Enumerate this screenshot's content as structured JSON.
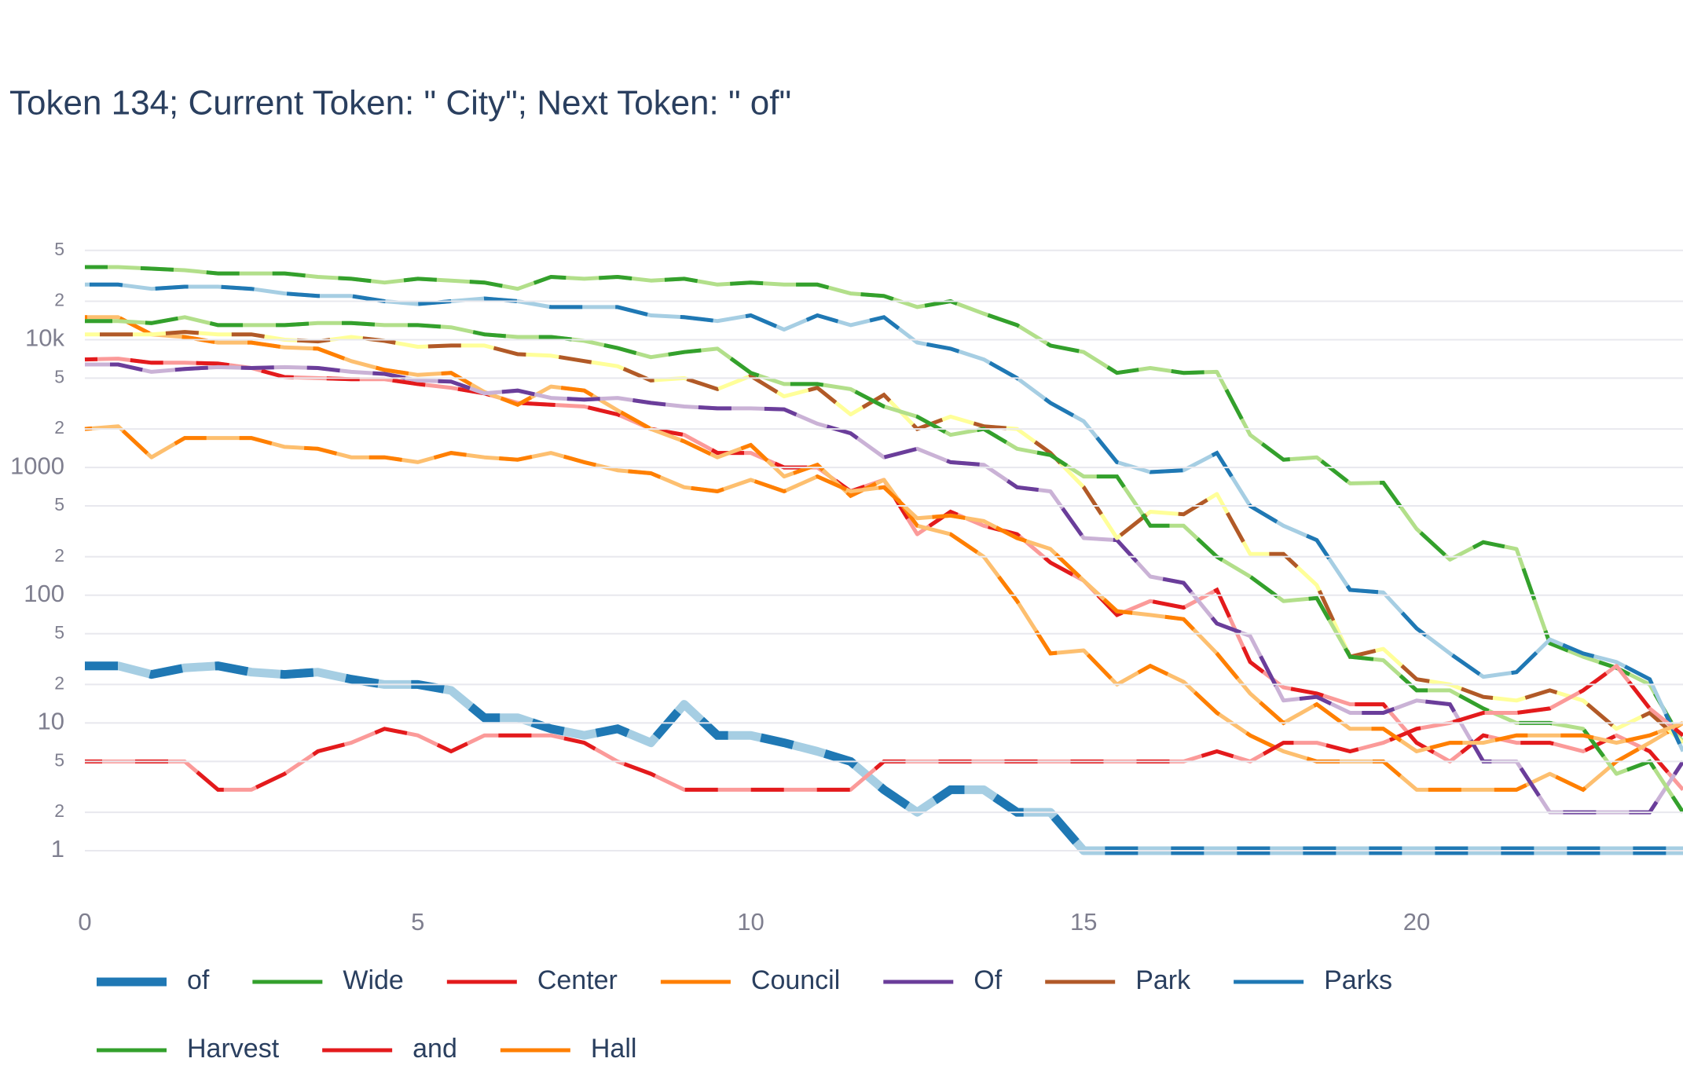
{
  "chart_data": {
    "type": "line",
    "title": "Token 134; Current Token: \" City\"; Next Token: \" of\"",
    "log_y": true,
    "grid": true,
    "x": [
      0,
      0.5,
      1,
      1.5,
      2,
      2.5,
      3,
      3.5,
      4,
      4.5,
      5,
      5.5,
      6,
      6.5,
      7,
      7.5,
      8,
      8.5,
      9,
      9.5,
      10,
      10.5,
      11,
      11.5,
      12,
      12.5,
      13,
      13.5,
      14,
      14.5,
      15,
      15.5,
      16,
      16.5,
      17,
      17.5,
      18,
      18.5,
      19,
      19.5,
      20,
      20.5,
      21,
      21.5,
      22,
      22.5,
      23,
      23.5,
      24
    ],
    "xlim": [
      0,
      24
    ],
    "xticks": [
      0,
      5,
      10,
      15,
      20
    ],
    "ylim": [
      0.5,
      70000
    ],
    "yticks": [
      1,
      {
        "value": 2,
        "label": "2"
      },
      {
        "value": 5,
        "label": "5"
      },
      10,
      {
        "value": 20,
        "label": "2"
      },
      {
        "value": 50,
        "label": "5"
      },
      100,
      {
        "value": 200,
        "label": "2"
      },
      {
        "value": 500,
        "label": "5"
      },
      1000,
      {
        "value": 2000,
        "label": "2"
      },
      {
        "value": 5000,
        "label": "5"
      },
      {
        "value": 10000,
        "label": "10k"
      },
      {
        "value": 20000,
        "label": "2"
      },
      {
        "value": 50000,
        "label": "5"
      }
    ],
    "series": [
      {
        "name": "of",
        "colors": [
          "#1f78b4",
          "#a6cee3"
        ],
        "values": [
          28,
          28,
          24,
          27,
          28,
          25,
          24,
          25,
          22,
          20,
          20,
          18,
          11,
          11,
          9,
          8,
          9,
          7,
          14,
          8,
          8,
          7,
          6,
          5,
          3,
          2,
          3,
          3,
          2,
          2,
          1,
          1,
          1,
          1,
          1,
          1,
          1,
          1,
          1,
          1,
          1,
          1,
          1,
          1,
          1,
          1,
          1,
          1,
          1
        ]
      },
      {
        "name": "Wide",
        "colors": [
          "#33a02c",
          "#b2df8a"
        ],
        "values": [
          37000,
          37000,
          36000,
          35000,
          33000,
          33000,
          33000,
          31000,
          30000,
          28000,
          30000,
          29000,
          28000,
          25000,
          31000,
          30000,
          31000,
          29000,
          30000,
          27000,
          28000,
          27000,
          27000,
          23000,
          22000,
          18000,
          20000,
          16000,
          13000,
          9000,
          8000,
          5500,
          6000,
          5500,
          5600,
          1800,
          1150,
          1200,
          750,
          760,
          330,
          190,
          260,
          230,
          42,
          33,
          27,
          20,
          7
        ]
      },
      {
        "name": "Center",
        "colors": [
          "#e31a1c",
          "#fb9a99"
        ],
        "values": [
          7000,
          7100,
          6600,
          6600,
          6500,
          6000,
          5100,
          5000,
          4900,
          4900,
          4500,
          4200,
          3800,
          3200,
          3100,
          3000,
          2600,
          2000,
          1800,
          1300,
          1300,
          1000,
          1000,
          650,
          800,
          300,
          450,
          350,
          300,
          180,
          130,
          70,
          90,
          80,
          110,
          30,
          19,
          17,
          14,
          14,
          7,
          5,
          8,
          7,
          7,
          6,
          8,
          6,
          3
        ]
      },
      {
        "name": "Council",
        "colors": [
          "#ff7f00",
          "#fdbf6f"
        ],
        "values": [
          15000,
          15000,
          11000,
          10500,
          9500,
          9500,
          8700,
          8500,
          6800,
          5800,
          5300,
          5500,
          3900,
          3100,
          4300,
          4000,
          2800,
          2000,
          1600,
          1200,
          1500,
          850,
          1050,
          600,
          800,
          350,
          300,
          200,
          90,
          35,
          37,
          20,
          28,
          21,
          12,
          8,
          6,
          5,
          5,
          5,
          3,
          3,
          3,
          3,
          4,
          3,
          5,
          7,
          10
        ]
      },
      {
        "name": "Of",
        "colors": [
          "#6a3d9a",
          "#cab2d6"
        ],
        "values": [
          6400,
          6400,
          5600,
          5900,
          6100,
          6000,
          6100,
          6000,
          5600,
          5400,
          4800,
          4700,
          3800,
          4000,
          3500,
          3400,
          3500,
          3200,
          3000,
          2900,
          2900,
          2850,
          2200,
          1850,
          1200,
          1400,
          1100,
          1050,
          700,
          650,
          280,
          270,
          140,
          125,
          60,
          48,
          15,
          16,
          12,
          12,
          15,
          14,
          5,
          5,
          2,
          2,
          2,
          2,
          5
        ]
      },
      {
        "name": "Park",
        "colors": [
          "#b15928",
          "#ffff99"
        ],
        "values": [
          11000,
          11000,
          11000,
          11500,
          11000,
          11000,
          10000,
          9700,
          10500,
          9800,
          8800,
          9000,
          9000,
          7700,
          7500,
          6800,
          6200,
          4800,
          5000,
          4100,
          5200,
          3600,
          4200,
          2600,
          3700,
          2000,
          2500,
          2100,
          2000,
          1300,
          700,
          280,
          450,
          430,
          620,
          210,
          210,
          120,
          33,
          38,
          22,
          20,
          16,
          15,
          18,
          15,
          9,
          12,
          7
        ]
      },
      {
        "name": "Parks",
        "colors": [
          "#1f78b4",
          "#a6cee3"
        ],
        "values": [
          27000,
          27000,
          25000,
          26000,
          26000,
          25000,
          23000,
          22000,
          22000,
          20000,
          19000,
          20000,
          21000,
          20000,
          18000,
          18000,
          18000,
          15500,
          15000,
          14000,
          15500,
          12000,
          15500,
          13000,
          15000,
          9500,
          8500,
          7000,
          5000,
          3200,
          2300,
          1100,
          920,
          950,
          1300,
          500,
          350,
          270,
          110,
          105,
          55,
          35,
          23,
          25,
          45,
          35,
          30,
          22,
          6
        ]
      },
      {
        "name": "Harvest",
        "colors": [
          "#33a02c",
          "#b2df8a"
        ],
        "values": [
          14000,
          14000,
          13500,
          15000,
          13000,
          13000,
          13000,
          13500,
          13500,
          13000,
          13000,
          12500,
          11000,
          10500,
          10500,
          9800,
          8600,
          7300,
          8000,
          8500,
          5500,
          4500,
          4500,
          4100,
          3000,
          2500,
          1800,
          2000,
          1400,
          1250,
          850,
          850,
          350,
          350,
          200,
          140,
          90,
          95,
          33,
          31,
          18,
          18,
          13,
          10,
          10,
          9,
          4,
          5,
          2
        ]
      },
      {
        "name": "and",
        "colors": [
          "#e31a1c",
          "#fb9a99"
        ],
        "values": [
          5,
          5,
          5,
          5,
          3,
          3,
          4,
          6,
          7,
          9,
          8,
          6,
          8,
          8,
          8,
          7,
          5,
          4,
          3,
          3,
          3,
          3,
          3,
          3,
          5,
          5,
          5,
          5,
          5,
          5,
          5,
          5,
          5,
          5,
          6,
          5,
          7,
          7,
          6,
          7,
          9,
          10,
          12,
          12,
          13,
          18,
          28,
          13,
          8
        ]
      },
      {
        "name": "Hall",
        "colors": [
          "#ff7f00",
          "#fdbf6f"
        ],
        "values": [
          2000,
          2100,
          1200,
          1700,
          1700,
          1700,
          1450,
          1400,
          1200,
          1200,
          1100,
          1300,
          1200,
          1150,
          1300,
          1100,
          950,
          900,
          700,
          650,
          800,
          650,
          850,
          650,
          700,
          400,
          420,
          380,
          280,
          230,
          130,
          75,
          70,
          65,
          35,
          17,
          10,
          14,
          9,
          9,
          6,
          7,
          7,
          8,
          8,
          8,
          7,
          8,
          10
        ]
      }
    ]
  }
}
